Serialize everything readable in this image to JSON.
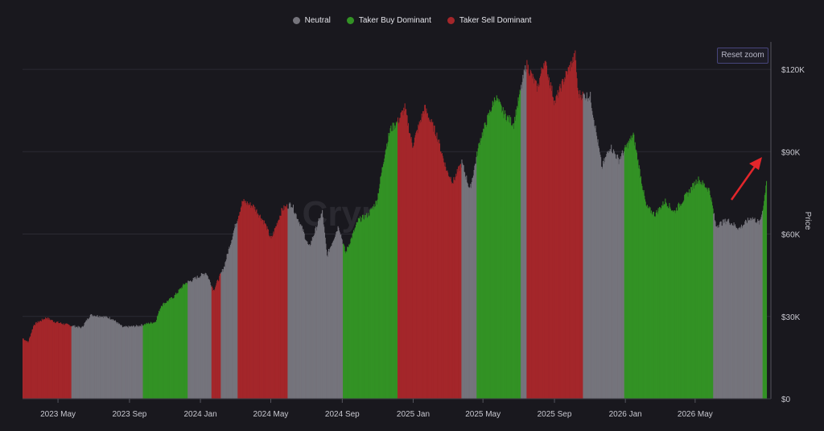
{
  "chart_data": {
    "type": "bar",
    "x_start": "2023-03-01",
    "x_end": "2026-08-31",
    "ylabel": "Price",
    "ylim": [
      0,
      130000
    ],
    "y_ticks": [
      {
        "value": 0,
        "label": "$0"
      },
      {
        "value": 30000,
        "label": "$30K"
      },
      {
        "value": 60000,
        "label": "$60K"
      },
      {
        "value": 90000,
        "label": "$90K"
      },
      {
        "value": 120000,
        "label": "$120K"
      }
    ],
    "x_ticks": [
      {
        "date": "2023-05-01",
        "label": "2023 May"
      },
      {
        "date": "2023-09-01",
        "label": "2023 Sep"
      },
      {
        "date": "2024-01-01",
        "label": "2024 Jan"
      },
      {
        "date": "2024-05-01",
        "label": "2024 May"
      },
      {
        "date": "2024-09-01",
        "label": "2024 Sep"
      },
      {
        "date": "2025-01-01",
        "label": "2025 Jan"
      },
      {
        "date": "2025-05-01",
        "label": "2025 May"
      },
      {
        "date": "2025-09-01",
        "label": "2025 Sep"
      },
      {
        "date": "2026-01-01",
        "label": "2026 Jan"
      },
      {
        "date": "2026-05-01",
        "label": "2026 May"
      }
    ],
    "grid": true,
    "legend_position": "top-center",
    "series": [
      {
        "name": "Neutral",
        "color": "#75747c"
      },
      {
        "name": "Taker Buy Dominant",
        "color": "#339225"
      },
      {
        "name": "Taker Sell Dominant",
        "color": "#a4262a"
      }
    ],
    "price_points": [
      [
        "2023-03-01",
        22000
      ],
      [
        "2023-03-10",
        20500
      ],
      [
        "2023-03-20",
        27000
      ],
      [
        "2023-04-10",
        29500
      ],
      [
        "2023-04-25",
        28000
      ],
      [
        "2023-05-15",
        27000
      ],
      [
        "2023-06-10",
        25800
      ],
      [
        "2023-06-25",
        30500
      ],
      [
        "2023-07-15",
        30000
      ],
      [
        "2023-08-01",
        29200
      ],
      [
        "2023-08-20",
        26000
      ],
      [
        "2023-09-15",
        26500
      ],
      [
        "2023-10-15",
        28000
      ],
      [
        "2023-10-25",
        34000
      ],
      [
        "2023-11-15",
        37000
      ],
      [
        "2023-12-05",
        42000
      ],
      [
        "2023-12-20",
        43500
      ],
      [
        "2024-01-10",
        46000
      ],
      [
        "2024-01-23",
        39500
      ],
      [
        "2024-02-10",
        48000
      ],
      [
        "2024-02-28",
        62000
      ],
      [
        "2024-03-13",
        72000
      ],
      [
        "2024-04-01",
        70000
      ],
      [
        "2024-04-20",
        64000
      ],
      [
        "2024-05-01",
        58000
      ],
      [
        "2024-05-20",
        69000
      ],
      [
        "2024-06-05",
        71000
      ],
      [
        "2024-06-25",
        61000
      ],
      [
        "2024-07-05",
        55000
      ],
      [
        "2024-07-28",
        68000
      ],
      [
        "2024-08-05",
        52000
      ],
      [
        "2024-08-25",
        63000
      ],
      [
        "2024-09-06",
        53000
      ],
      [
        "2024-09-28",
        65000
      ],
      [
        "2024-10-15",
        67000
      ],
      [
        "2024-10-30",
        72000
      ],
      [
        "2024-11-13",
        90000
      ],
      [
        "2024-11-22",
        98000
      ],
      [
        "2024-12-05",
        101000
      ],
      [
        "2024-12-17",
        106000
      ],
      [
        "2024-12-30",
        92000
      ],
      [
        "2025-01-20",
        106000
      ],
      [
        "2025-02-10",
        96000
      ],
      [
        "2025-02-27",
        83000
      ],
      [
        "2025-03-10",
        79000
      ],
      [
        "2025-03-25",
        86000
      ],
      [
        "2025-04-08",
        76000
      ],
      [
        "2025-04-25",
        94000
      ],
      [
        "2025-05-10",
        103000
      ],
      [
        "2025-05-22",
        110000
      ],
      [
        "2025-06-05",
        104000
      ],
      [
        "2025-06-22",
        100000
      ],
      [
        "2025-07-14",
        122000
      ],
      [
        "2025-08-02",
        113000
      ],
      [
        "2025-08-14",
        123500
      ],
      [
        "2025-09-01",
        108000
      ],
      [
        "2025-09-18",
        117000
      ],
      [
        "2025-10-06",
        125000
      ],
      [
        "2025-10-11",
        111000
      ],
      [
        "2025-11-01",
        110000
      ],
      [
        "2025-11-21",
        84000
      ],
      [
        "2025-12-05",
        92000
      ],
      [
        "2025-12-20",
        87000
      ],
      [
        "2026-01-14",
        96000
      ],
      [
        "2026-02-05",
        70000
      ],
      [
        "2026-02-20",
        67000
      ],
      [
        "2026-03-10",
        72000
      ],
      [
        "2026-03-25",
        68000
      ],
      [
        "2026-04-15",
        74000
      ],
      [
        "2026-05-05",
        80000
      ],
      [
        "2026-05-25",
        76000
      ],
      [
        "2026-06-05",
        63000
      ],
      [
        "2026-06-25",
        65000
      ],
      [
        "2026-07-15",
        62000
      ],
      [
        "2026-08-05",
        66000
      ],
      [
        "2026-08-20",
        64000
      ],
      [
        "2026-08-27",
        72000
      ],
      [
        "2026-08-31",
        80000
      ]
    ],
    "regimes": [
      {
        "start": "2023-03-01",
        "end": "2023-05-24",
        "series": "Taker Sell Dominant"
      },
      {
        "start": "2023-05-24",
        "end": "2023-09-24",
        "series": "Neutral"
      },
      {
        "start": "2023-09-24",
        "end": "2023-12-10",
        "series": "Taker Buy Dominant"
      },
      {
        "start": "2023-12-10",
        "end": "2024-01-20",
        "series": "Neutral"
      },
      {
        "start": "2024-01-20",
        "end": "2024-02-05",
        "series": "Taker Sell Dominant"
      },
      {
        "start": "2024-02-05",
        "end": "2024-03-05",
        "series": "Neutral"
      },
      {
        "start": "2024-03-05",
        "end": "2024-05-30",
        "series": "Taker Sell Dominant"
      },
      {
        "start": "2024-05-30",
        "end": "2024-09-02",
        "series": "Neutral"
      },
      {
        "start": "2024-09-02",
        "end": "2024-11-08",
        "series": "Taker Buy Dominant"
      },
      {
        "start": "2024-11-08",
        "end": "2024-12-05",
        "series": "Taker Buy Dominant"
      },
      {
        "start": "2024-12-05",
        "end": "2025-03-25",
        "series": "Taker Sell Dominant"
      },
      {
        "start": "2025-03-25",
        "end": "2025-04-20",
        "series": "Neutral"
      },
      {
        "start": "2025-04-20",
        "end": "2025-07-05",
        "series": "Taker Buy Dominant"
      },
      {
        "start": "2025-07-05",
        "end": "2025-07-15",
        "series": "Neutral"
      },
      {
        "start": "2025-07-15",
        "end": "2025-10-20",
        "series": "Taker Sell Dominant"
      },
      {
        "start": "2025-10-20",
        "end": "2025-12-30",
        "series": "Neutral"
      },
      {
        "start": "2025-12-30",
        "end": "2026-06-01",
        "series": "Taker Buy Dominant"
      },
      {
        "start": "2026-06-01",
        "end": "2026-08-25",
        "series": "Neutral"
      },
      {
        "start": "2026-08-25",
        "end": "2026-08-31",
        "series": "Taker Buy Dominant"
      }
    ],
    "watermark": "CryptoQuant"
  },
  "ui": {
    "reset_zoom_label": "Reset zoom"
  }
}
